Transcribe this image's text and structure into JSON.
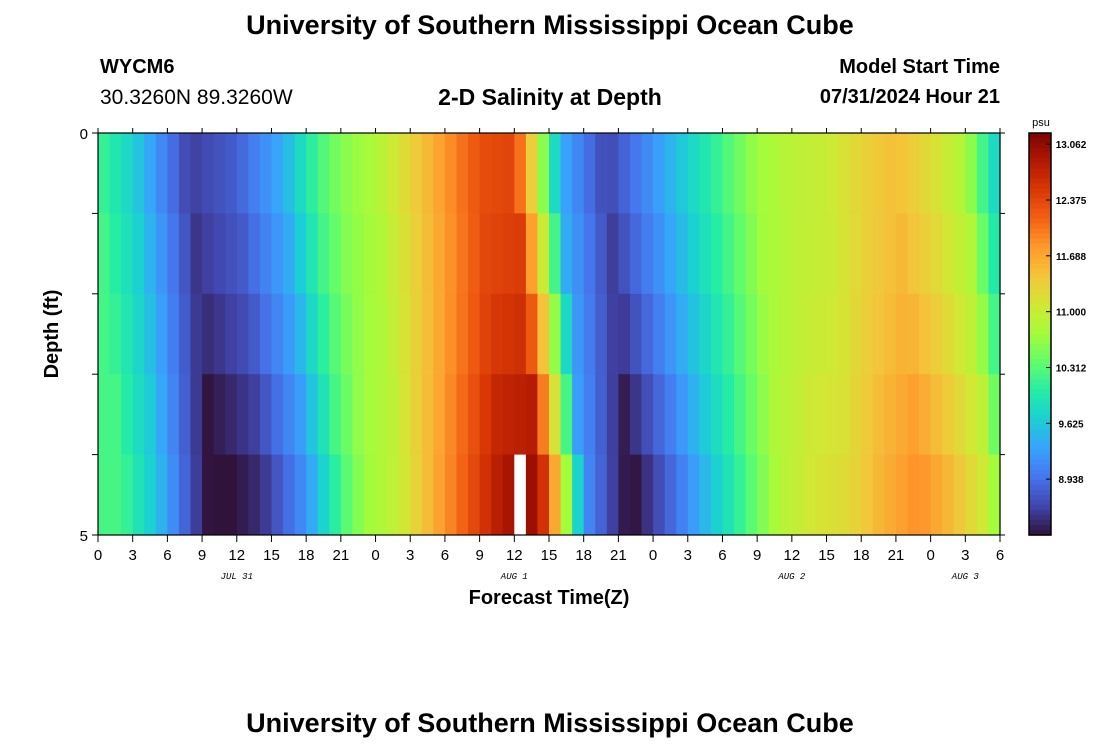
{
  "header": {
    "title": "University of Southern Mississippi Ocean Cube",
    "station_id": "WYCM6",
    "coords": "30.3260N  89.3260W",
    "plot_title": "2-D Salinity at Depth",
    "start_label": "Model Start Time",
    "start_value": "07/31/2024 Hour 21"
  },
  "footer": {
    "title": "University of Southern Mississippi Ocean Cube"
  },
  "colors": [
    "#30123b",
    "#4145ab",
    "#4675ed",
    "#39a2fc",
    "#1bcfd4",
    "#24eca6",
    "#61fc6c",
    "#a4fc3b",
    "#d1e834",
    "#f3c63a",
    "#fe9b2d",
    "#f36315",
    "#d93806",
    "#b11901",
    "#7a0402"
  ],
  "chart_data": {
    "type": "heatmap",
    "xlabel": "Forecast Time(Z)",
    "ylabel": "Depth (ft)",
    "x_tick_labels": [
      "0",
      "3",
      "6",
      "9",
      "12",
      "15",
      "18",
      "21",
      "0",
      "3",
      "6",
      "9",
      "12",
      "15",
      "18",
      "21",
      "0",
      "3",
      "6",
      "9",
      "12",
      "15",
      "18",
      "21",
      "0",
      "3",
      "6"
    ],
    "date_labels": [
      {
        "label": "JUL 31",
        "hour": 12
      },
      {
        "label": "AUG 1",
        "hour": 36
      },
      {
        "label": "AUG 2",
        "hour": 60
      },
      {
        "label": "AUG 3",
        "hour": 75
      }
    ],
    "y_tick_labels": [
      "0",
      "5"
    ],
    "y_range": [
      0,
      5
    ],
    "x_range_hours": [
      0,
      78
    ],
    "colorbar": {
      "unit": "psu",
      "ticks": [
        "13.062",
        "12.375",
        "11.688",
        "11.000",
        "10.312",
        "9.625",
        "8.938"
      ],
      "range": [
        8.25,
        13.2
      ]
    },
    "depth_layers": [
      {
        "depth": 0.5,
        "shift": 0.0,
        "delta": 0.0
      },
      {
        "depth": 1.5,
        "shift": 0.5,
        "delta": 0.05
      },
      {
        "depth": 2.5,
        "shift": 1.0,
        "delta": 0.15
      },
      {
        "depth": 3.5,
        "shift": 1.5,
        "delta": 0.3
      },
      {
        "depth": 4.5,
        "shift": 2.0,
        "delta": 0.45
      }
    ],
    "surface_series": {
      "hours": [
        0,
        3,
        6,
        8,
        12,
        16,
        19,
        21,
        24,
        27,
        30,
        33,
        36,
        38,
        40,
        44,
        48,
        51,
        54,
        57,
        60,
        63,
        66,
        69,
        72,
        75,
        78
      ],
      "salinity": [
        10.2,
        9.7,
        9.0,
        8.55,
        8.8,
        9.4,
        10.2,
        10.55,
        10.8,
        11.3,
        11.8,
        12.3,
        12.4,
        11.0,
        9.4,
        8.6,
        9.2,
        9.7,
        10.2,
        10.7,
        10.9,
        11.0,
        11.3,
        11.5,
        11.2,
        10.8,
        9.6
      ]
    },
    "missing_cell": {
      "hour": 36,
      "depth": 4.5
    }
  }
}
